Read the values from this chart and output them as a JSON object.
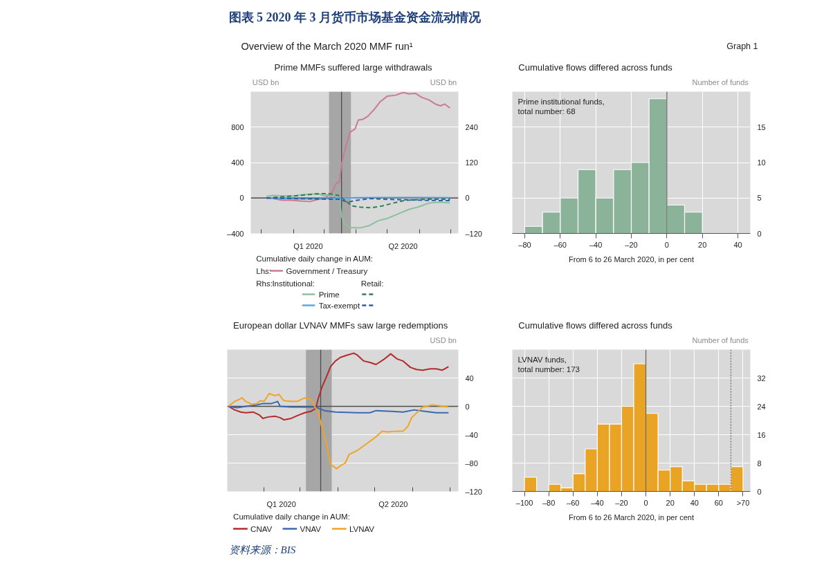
{
  "chart_data": [
    {
      "type": "other",
      "title": "图表 5 2020 年 3 月货币市场基金资金流动情况",
      "subtitle": "Overview of the March 2020 MMF run¹",
      "annotations": [
        "Graph 1",
        "资料来源：BIS"
      ]
    },
    {
      "type": "line",
      "title": "Prime MMFs suffered large withdrawals",
      "ylabel": "USD bn",
      "y2label": "USD bn",
      "legend_title": "Cumulative daily change in AUM:",
      "annotations": [
        "Lhs:",
        "Rhs:",
        "Institutional:",
        "Retail:"
      ],
      "legend": "bottom",
      "grid": "y",
      "xlim": [
        "2019-12-22",
        "2020-07-08"
      ],
      "xticks": [
        {
          "value": "2020-01-01",
          "label": null
        },
        {
          "value": "2020-02-01",
          "label": null
        },
        {
          "value": "2020-03-01",
          "label": null
        },
        {
          "value": "2020-04-01",
          "label": null
        },
        {
          "value": "2020-05-01",
          "label": null
        },
        {
          "value": "2020-06-01",
          "label": null
        },
        {
          "value": "2020-07-01",
          "label": null
        },
        {
          "value": "2020-02-15",
          "label": "Q1 2020"
        },
        {
          "value": "2020-05-16",
          "label": "Q2 2020"
        }
      ],
      "ylim": [
        -400,
        1200
      ],
      "yticks": [
        {
          "value": -400,
          "label": "–400"
        },
        0,
        400,
        800
      ],
      "y2lim": [
        -120,
        360
      ],
      "y2ticks": [
        {
          "value": -120,
          "label": "–120"
        },
        0,
        120,
        240
      ],
      "ref_lines": [
        {
          "axis": "y",
          "value": 0,
          "color": "#4d4d4d"
        },
        {
          "axis": "x",
          "value": "2020-03-18",
          "color": "#4d4d4d"
        }
      ],
      "bands": [
        {
          "axis": "x",
          "from": "2020-03-06",
          "to": "2020-03-27",
          "color": "#a6a6a6"
        }
      ],
      "series": [
        {
          "name": "Government / Treasury",
          "color": "#c97b93",
          "axis": "y",
          "line_style": "solid",
          "x": [
            "2020-01-06",
            "2020-01-12",
            "2020-01-21",
            "2020-01-30",
            "2020-02-09",
            "2020-02-17",
            "2020-02-23",
            "2020-03-01",
            "2020-03-05",
            "2020-03-09",
            "2020-03-13",
            "2020-03-16",
            "2020-03-18",
            "2020-03-21",
            "2020-03-26",
            "2020-03-31",
            "2020-04-03",
            "2020-04-07",
            "2020-04-12",
            "2020-04-18",
            "2020-04-24",
            "2020-05-01",
            "2020-05-09",
            "2020-05-16",
            "2020-05-22",
            "2020-05-28",
            "2020-06-03",
            "2020-06-10",
            "2020-06-16",
            "2020-06-21",
            "2020-06-25",
            "2020-06-30"
          ],
          "values": [
            0,
            -5,
            -25,
            -25,
            -35,
            -40,
            -20,
            -5,
            25,
            65,
            165,
            180,
            380,
            535,
            740,
            780,
            880,
            885,
            920,
            995,
            1085,
            1150,
            1160,
            1190,
            1175,
            1180,
            1135,
            1105,
            1060,
            1040,
            1060,
            1015
          ]
        },
        {
          "name": "Prime",
          "color": "#8cc09e",
          "axis": "y2",
          "line_style": "solid",
          "x": [
            "2020-01-06",
            "2020-01-12",
            "2020-01-23",
            "2020-02-02",
            "2020-02-09",
            "2020-02-17",
            "2020-02-25",
            "2020-03-01",
            "2020-03-07",
            "2020-03-13",
            "2020-03-16",
            "2020-03-18",
            "2020-03-21",
            "2020-03-26",
            "2020-04-05",
            "2020-04-14",
            "2020-04-22",
            "2020-05-01",
            "2020-05-11",
            "2020-05-22",
            "2020-05-30",
            "2020-06-10",
            "2020-06-20",
            "2020-06-30"
          ],
          "values": [
            6,
            9,
            7,
            7,
            11,
            13,
            14,
            7,
            14,
            9,
            -8,
            -61,
            -88,
            -100,
            -101,
            -93,
            -77,
            -69,
            -54,
            -38,
            -31,
            -17,
            -14,
            -17
          ]
        },
        {
          "name": "Tax-exempt",
          "color": "#5aa6e0",
          "axis": "y2",
          "line_style": "solid",
          "x": [
            "2020-01-06",
            "2020-02-02",
            "2020-03-01",
            "2020-03-19",
            "2020-04-01",
            "2020-05-01",
            "2020-06-01",
            "2020-06-30"
          ],
          "values": [
            0,
            -3,
            -3,
            0,
            1,
            2,
            2,
            1
          ]
        },
        {
          "color": "#2e7d55",
          "axis": "y2",
          "line_style": "dashed",
          "x": [
            "2020-01-06",
            "2020-02-02",
            "2020-02-23",
            "2020-03-05",
            "2020-03-15",
            "2020-03-20",
            "2020-03-28",
            "2020-04-05",
            "2020-04-16",
            "2020-04-26",
            "2020-05-09",
            "2020-05-18",
            "2020-06-08",
            "2020-06-30"
          ],
          "values": [
            0,
            7,
            14,
            15,
            9,
            -4,
            -27,
            -31,
            -33,
            -27,
            -15,
            -8,
            -4,
            -4
          ]
        },
        {
          "color": "#2b5ea8",
          "axis": "y2",
          "line_style": "dashed",
          "x": [
            "2020-01-06",
            "2020-03-03",
            "2020-03-15",
            "2020-03-24",
            "2020-04-01",
            "2020-04-14",
            "2020-04-26",
            "2020-05-18",
            "2020-06-08",
            "2020-06-30"
          ],
          "values": [
            0,
            -4,
            -4,
            -14,
            -8,
            -2,
            -4,
            -6,
            -8,
            -9
          ]
        }
      ]
    },
    {
      "type": "histogram",
      "title": "Cumulative flows differed across funds",
      "ylabel": "Number of funds",
      "xlabel": "From 6 to 26 March 2020, in per cent",
      "annotations": [
        "Prime institutional funds,\ntotal number: 68"
      ],
      "grid": true,
      "bins": [
        -80,
        -70,
        -60,
        -50,
        -40,
        -30,
        -20,
        -10,
        0,
        10,
        20
      ],
      "values": [
        1,
        3,
        5,
        9,
        5,
        9,
        10,
        19,
        4,
        3
      ],
      "color": "#8ab39a",
      "xlim": [
        -87,
        47
      ],
      "xticks": [
        {
          "value": -80,
          "label": "–80"
        },
        {
          "value": -60,
          "label": "–60"
        },
        {
          "value": -40,
          "label": "–40"
        },
        {
          "value": -20,
          "label": "–20"
        },
        0,
        20,
        40
      ],
      "ylim": [
        0,
        20
      ],
      "yticks": [
        0,
        5,
        10,
        15
      ],
      "ref_lines": [
        {
          "axis": "x",
          "value": 0,
          "color": "#666666"
        }
      ]
    },
    {
      "type": "line",
      "title": "European dollar LVNAV MMFs saw large redemptions",
      "ylabel": "USD bn",
      "legend_title": "Cumulative daily change in AUM:",
      "legend": "bottom",
      "grid": "y",
      "xlim": [
        "2020-01-02",
        "2020-07-08"
      ],
      "xticks": [
        {
          "value": "2020-02-01",
          "label": null
        },
        {
          "value": "2020-03-01",
          "label": null
        },
        {
          "value": "2020-04-01",
          "label": null
        },
        {
          "value": "2020-05-01",
          "label": null
        },
        {
          "value": "2020-06-01",
          "label": null
        },
        {
          "value": "2020-07-01",
          "label": null
        },
        {
          "value": "2020-02-15",
          "label": "Q1 2020"
        },
        {
          "value": "2020-05-16",
          "label": "Q2 2020"
        }
      ],
      "ylim": [
        -120,
        80
      ],
      "yticks": [
        {
          "value": -120,
          "label": "–120"
        },
        {
          "value": -80,
          "label": "–80"
        },
        {
          "value": -40,
          "label": "–40"
        },
        0,
        40
      ],
      "ref_lines": [
        {
          "axis": "y",
          "value": 0,
          "color": "#4d4d4d"
        },
        {
          "axis": "x",
          "value": "2020-03-18",
          "color": "#4d4d4d"
        }
      ],
      "bands": [
        {
          "axis": "x",
          "from": "2020-03-06",
          "to": "2020-03-27",
          "color": "#a6a6a6"
        }
      ],
      "series": [
        {
          "name": "CNAV",
          "color": "#b22a2e",
          "x": [
            "2020-01-03",
            "2020-01-08",
            "2020-01-13",
            "2020-01-17",
            "2020-01-23",
            "2020-01-28",
            "2020-01-31",
            "2020-02-04",
            "2020-02-10",
            "2020-02-14",
            "2020-02-17",
            "2020-02-23",
            "2020-02-28",
            "2020-03-05",
            "2020-03-10",
            "2020-03-14",
            "2020-03-16",
            "2020-03-19",
            "2020-03-23",
            "2020-03-26",
            "2020-03-30",
            "2020-04-03",
            "2020-04-08",
            "2020-04-14",
            "2020-04-17",
            "2020-04-22",
            "2020-04-27",
            "2020-05-02",
            "2020-05-09",
            "2020-05-14",
            "2020-05-19",
            "2020-05-24",
            "2020-05-30",
            "2020-06-04",
            "2020-06-09",
            "2020-06-15",
            "2020-06-20",
            "2020-06-25",
            "2020-06-30"
          ],
          "values": [
            0,
            -5,
            -8,
            -9,
            -8,
            -12,
            -17,
            -15,
            -14,
            -16,
            -19,
            -17,
            -13,
            -9,
            -7,
            -3,
            11,
            27,
            43,
            56,
            64,
            69,
            72,
            75,
            72,
            64,
            62,
            59,
            67,
            74,
            67,
            64,
            55,
            52,
            51,
            53,
            53,
            51,
            56
          ]
        },
        {
          "name": "VNAV",
          "color": "#3a68b0",
          "x": [
            "2020-01-03",
            "2020-01-10",
            "2020-01-17",
            "2020-01-26",
            "2020-01-31",
            "2020-02-07",
            "2020-02-12",
            "2020-02-14",
            "2020-02-23",
            "2020-03-03",
            "2020-03-14",
            "2020-03-21",
            "2020-03-30",
            "2020-04-17",
            "2020-04-27",
            "2020-05-02",
            "2020-05-15",
            "2020-05-24",
            "2020-06-02",
            "2020-06-11",
            "2020-06-20",
            "2020-06-30"
          ],
          "values": [
            0,
            -2,
            0,
            2,
            4,
            4,
            7,
            0,
            -1,
            -1,
            -1,
            -6,
            -8,
            -9,
            -9,
            -6,
            -7,
            -8,
            -5,
            -7,
            -9,
            -9
          ]
        },
        {
          "name": "LVNAV",
          "color": "#f0a326",
          "x": [
            "2020-01-03",
            "2020-01-08",
            "2020-01-12",
            "2020-01-14",
            "2020-01-17",
            "2020-01-22",
            "2020-01-26",
            "2020-01-29",
            "2020-02-01",
            "2020-02-05",
            "2020-02-10",
            "2020-02-13",
            "2020-02-17",
            "2020-02-23",
            "2020-02-28",
            "2020-03-05",
            "2020-03-10",
            "2020-03-13",
            "2020-03-16",
            "2020-03-19",
            "2020-03-23",
            "2020-03-26",
            "2020-03-28",
            "2020-03-31",
            "2020-04-03",
            "2020-04-07",
            "2020-04-10",
            "2020-04-17",
            "2020-04-25",
            "2020-05-02",
            "2020-05-07",
            "2020-05-11",
            "2020-05-19",
            "2020-05-24",
            "2020-05-28",
            "2020-05-31",
            "2020-06-06",
            "2020-06-09",
            "2020-06-17",
            "2020-06-22",
            "2020-06-30"
          ],
          "values": [
            0,
            7,
            10,
            12,
            7,
            3,
            4,
            8,
            7,
            18,
            15,
            17,
            8,
            7,
            7,
            12,
            10,
            0,
            -8,
            -30,
            -54,
            -83,
            -84,
            -88,
            -84,
            -80,
            -68,
            -62,
            -52,
            -43,
            -35,
            -36,
            -35,
            -35,
            -28,
            -16,
            -6,
            -1,
            2,
            1,
            -1
          ]
        }
      ]
    },
    {
      "type": "histogram",
      "title": "Cumulative flows differed across funds",
      "ylabel": "Number of funds",
      "xlabel": "From 6 to 26 March 2020, in per cent",
      "annotations": [
        "LVNAV funds,\ntotal number: 173"
      ],
      "grid": true,
      "bins": [
        -100,
        -90,
        -80,
        -70,
        -60,
        -50,
        -40,
        -30,
        -20,
        -10,
        0,
        10,
        20,
        30,
        40,
        50,
        60,
        70,
        80
      ],
      "values": [
        4,
        0,
        2,
        1,
        5,
        12,
        19,
        19,
        24,
        36,
        22,
        6,
        7,
        3,
        2,
        2,
        2,
        7
      ],
      "color": "#e9a325",
      "xlim": [
        -110,
        86
      ],
      "xticks": [
        {
          "value": -100,
          "label": "–100"
        },
        {
          "value": -80,
          "label": "–80"
        },
        {
          "value": -60,
          "label": "–60"
        },
        {
          "value": -40,
          "label": "–40"
        },
        {
          "value": -20,
          "label": "–20"
        },
        0,
        20,
        40,
        60,
        {
          "value": 80,
          "label": ">70"
        }
      ],
      "ylim": [
        0,
        40
      ],
      "yticks": [
        0,
        8,
        16,
        24,
        32
      ],
      "ref_lines": [
        {
          "axis": "x",
          "value": 0,
          "color": "#666666"
        },
        {
          "axis": "x",
          "value": 70,
          "color": "#6e6e6e",
          "line_style": "dotted"
        }
      ]
    }
  ]
}
